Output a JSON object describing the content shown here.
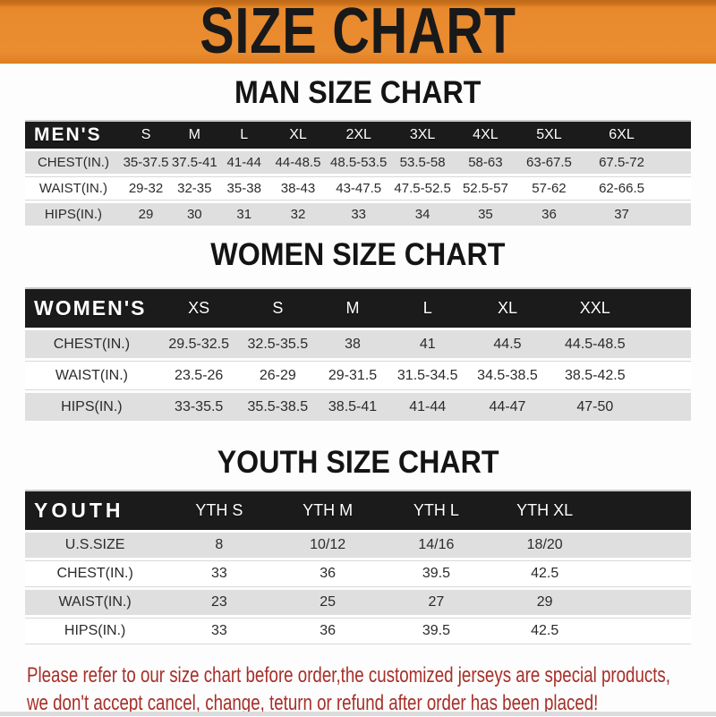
{
  "banner": {
    "title": "SIZE CHART"
  },
  "colors": {
    "banner_orange": "#e8892e",
    "banner_orange_dark_edge": "#c06a1a",
    "header_band_black": "#1b1b1b",
    "row_gray": "#dfdfdf",
    "row_white": "#ffffff",
    "disclaimer_red": "#a72f28",
    "heading_black": "#141414"
  },
  "chart_data": [
    {
      "type": "table",
      "title": "MAN SIZE CHART",
      "corner_label": "MEN'S",
      "columns": [
        "S",
        "M",
        "L",
        "XL",
        "2XL",
        "3XL",
        "4XL",
        "5XL",
        "6XL"
      ],
      "rows": [
        {
          "label": "CHEST(IN.)",
          "values": [
            "35-37.5",
            "37.5-41",
            "41-44",
            "44-48.5",
            "48.5-53.5",
            "53.5-58",
            "58-63",
            "63-67.5",
            "67.5-72"
          ]
        },
        {
          "label": "WAIST(IN.)",
          "values": [
            "29-32",
            "32-35",
            "35-38",
            "38-43",
            "43-47.5",
            "47.5-52.5",
            "52.5-57",
            "57-62",
            "62-66.5"
          ]
        },
        {
          "label": "HIPS(IN.)",
          "values": [
            "29",
            "30",
            "31",
            "32",
            "33",
            "34",
            "35",
            "36",
            "37"
          ]
        }
      ]
    },
    {
      "type": "table",
      "title": "WOMEN SIZE CHART",
      "corner_label": "WOMEN'S",
      "columns": [
        "XS",
        "S",
        "M",
        "L",
        "XL",
        "XXL"
      ],
      "rows": [
        {
          "label": "CHEST(IN.)",
          "values": [
            "29.5-32.5",
            "32.5-35.5",
            "38",
            "41",
            "44.5",
            "44.5-48.5"
          ]
        },
        {
          "label": "WAIST(IN.)",
          "values": [
            "23.5-26",
            "26-29",
            "29-31.5",
            "31.5-34.5",
            "34.5-38.5",
            "38.5-42.5"
          ]
        },
        {
          "label": "HIPS(IN.)",
          "values": [
            "33-35.5",
            "35.5-38.5",
            "38.5-41",
            "41-44",
            "44-47",
            "47-50"
          ]
        }
      ]
    },
    {
      "type": "table",
      "title": "YOUTH SIZE CHART",
      "corner_label": "YOUTH",
      "columns": [
        "YTH S",
        "YTH M",
        "YTH L",
        "YTH XL"
      ],
      "rows": [
        {
          "label": "U.S.SIZE",
          "values": [
            "8",
            "10/12",
            "14/16",
            "18/20"
          ]
        },
        {
          "label": "CHEST(IN.)",
          "values": [
            "33",
            "36",
            "39.5",
            "42.5"
          ]
        },
        {
          "label": "WAIST(IN.)",
          "values": [
            "23",
            "25",
            "27",
            "29"
          ]
        },
        {
          "label": "HIPS(IN.)",
          "values": [
            "33",
            "36",
            "39.5",
            "42.5"
          ]
        }
      ]
    }
  ],
  "disclaimer": {
    "line1": "Please refer to our size chart before order,the customized jerseys are special products,",
    "line2": "we don't accept cancel, change, teturn or refund after order has been placed!"
  }
}
